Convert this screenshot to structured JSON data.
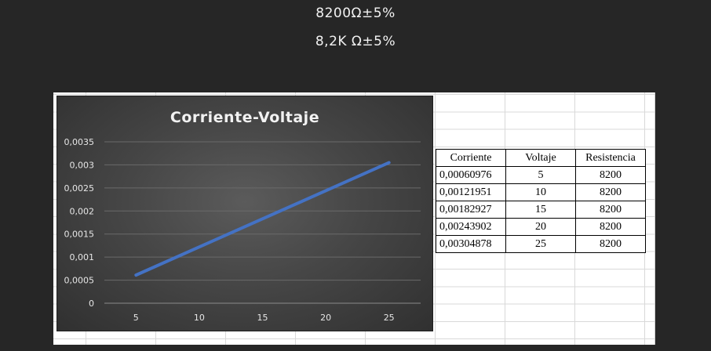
{
  "headings": {
    "line1": "8200Ω±5%",
    "line2": "8,2K Ω±5%"
  },
  "colors": {
    "background": "#262626",
    "series_line": "#4472C4"
  },
  "chart_data": {
    "type": "line",
    "title": "Corriente-Voltaje",
    "x": [
      5,
      10,
      15,
      20,
      25
    ],
    "series": [
      {
        "values": [
          0.00060976,
          0.00121951,
          0.00182927,
          0.00243902,
          0.00304878
        ]
      }
    ],
    "x_tick_labels": [
      "5",
      "10",
      "15",
      "20",
      "25"
    ],
    "y_tick_values": [
      0,
      0.0005,
      0.001,
      0.0015,
      0.002,
      0.0025,
      0.003,
      0.0035
    ],
    "y_tick_labels": [
      "0",
      "0,0005",
      "0,001",
      "0,0015",
      "0,002",
      "0,0025",
      "0,003",
      "0,0035"
    ],
    "ylim": [
      0,
      0.0035
    ],
    "grid": true,
    "legend": "none"
  },
  "table": {
    "headers": [
      "Corriente",
      "Voltaje",
      "Resistencia"
    ],
    "rows": [
      [
        "0,00060976",
        "5",
        "8200"
      ],
      [
        "0,00121951",
        "10",
        "8200"
      ],
      [
        "0,00182927",
        "15",
        "8200"
      ],
      [
        "0,00243902",
        "20",
        "8200"
      ],
      [
        "0,00304878",
        "25",
        "8200"
      ]
    ]
  }
}
